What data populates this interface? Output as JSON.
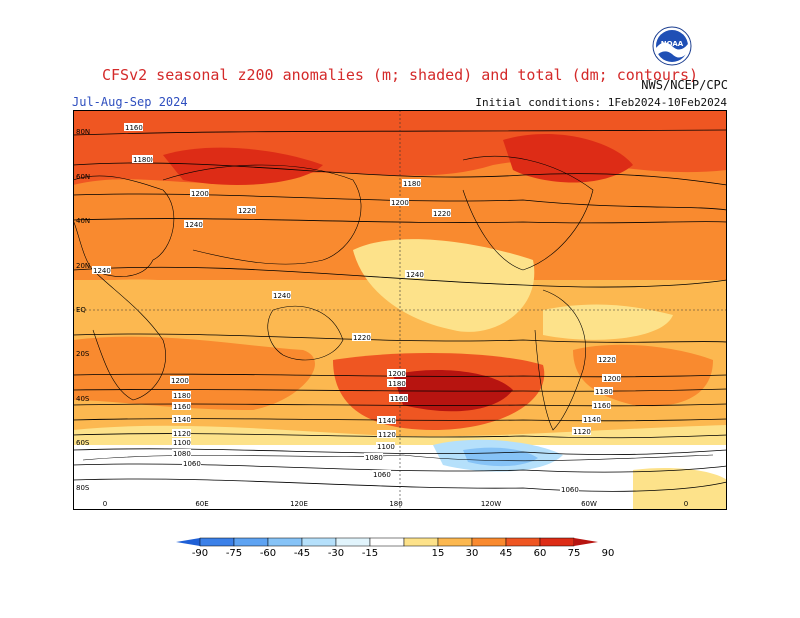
{
  "title": "CFSv2 seasonal z200 anomalies (m; shaded) and total (dm; contours)",
  "season": "Jul-Aug-Sep 2024",
  "initial_conditions": "Initial conditions: 1Feb2024-10Feb2024",
  "agency": "NWS/NCEP/CPC",
  "logo_text": "NOAA",
  "lat_labels": [
    "80N",
    "60N",
    "40N",
    "20N",
    "EQ",
    "20S",
    "40S",
    "60S",
    "80S"
  ],
  "lon_labels": [
    "0",
    "60E",
    "120E",
    "180",
    "120W",
    "60W",
    "0"
  ],
  "contour_labels": [
    "1160",
    "1160",
    "1180",
    "1200",
    "1220",
    "1240",
    "1240",
    "1240",
    "1220",
    "1200",
    "1180",
    "1160",
    "1140",
    "1120",
    "1100",
    "1080",
    "1060",
    "1180",
    "1200",
    "1220",
    "1240",
    "1200",
    "1180",
    "1160",
    "1140",
    "1120",
    "1100",
    "1080",
    "1060",
    "1120",
    "1140",
    "1160",
    "1180",
    "1200",
    "1220",
    "1060"
  ],
  "colorbar": {
    "ticks": [
      "-90",
      "-75",
      "-60",
      "-45",
      "-30",
      "-15",
      "15",
      "30",
      "45",
      "60",
      "75",
      "90"
    ],
    "colors": [
      "#1e5fd6",
      "#3b80e8",
      "#5ea3f2",
      "#86c3f7",
      "#b5e0fb",
      "#e1f4fc",
      "#ffffff",
      "#fde28a",
      "#fcb850",
      "#f98a2f",
      "#ef5622",
      "#dd2c16",
      "#b71410"
    ]
  },
  "map_data": {
    "type": "filled-contour map",
    "anomaly_levels_m": [
      -90,
      -75,
      -60,
      -45,
      -30,
      -15,
      15,
      30,
      45,
      60,
      75,
      90
    ],
    "notable_regions": [
      {
        "region": "South Pacific (~40S, 150W)",
        "anomaly": "60 to 90"
      },
      {
        "region": "Southern Ocean (~60S, 120W)",
        "anomaly": "-15 to -45"
      },
      {
        "region": "Northern mid-latitudes",
        "anomaly": "30 to 75"
      },
      {
        "region": "Antarctica",
        "anomaly": "-15 to 15"
      }
    ]
  }
}
